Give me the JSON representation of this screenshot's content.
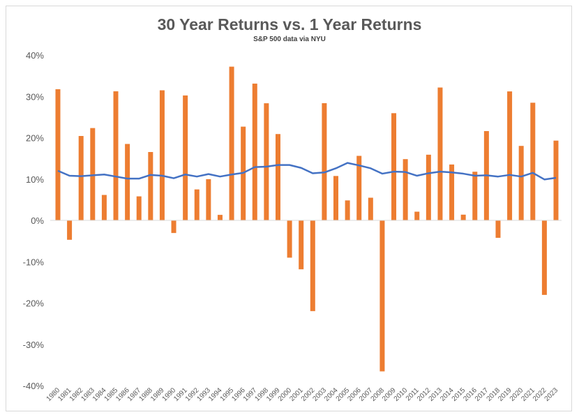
{
  "chart_data": {
    "type": "bar",
    "title": "30 Year Returns vs. 1 Year Returns",
    "subtitle": "S&P 500 data via NYU",
    "xlabel": "",
    "ylabel": "",
    "ylim": [
      -0.4,
      0.4
    ],
    "yticks": [
      -0.4,
      -0.3,
      -0.2,
      -0.1,
      0,
      0.1,
      0.2,
      0.3,
      0.4
    ],
    "ytick_labels": [
      "-40%",
      "-30%",
      "-20%",
      "-10%",
      "0%",
      "10%",
      "20%",
      "30%",
      "40%"
    ],
    "grid": false,
    "legend": "none",
    "categories": [
      "1980",
      "1981",
      "1982",
      "1983",
      "1984",
      "1985",
      "1986",
      "1987",
      "1988",
      "1989",
      "1990",
      "1991",
      "1992",
      "1993",
      "1994",
      "1995",
      "1996",
      "1997",
      "1998",
      "1999",
      "2000",
      "2001",
      "2002",
      "2003",
      "2004",
      "2005",
      "2006",
      "2007",
      "2008",
      "2009",
      "2010",
      "2011",
      "2012",
      "2013",
      "2014",
      "2015",
      "2016",
      "2017",
      "2018",
      "2019",
      "2020",
      "2021",
      "2022",
      "2023"
    ],
    "series": [
      {
        "type": "bar",
        "color": "#ed7d31",
        "values": [
          0.3174,
          -0.047,
          0.2042,
          0.2234,
          0.0615,
          0.3124,
          0.1849,
          0.0581,
          0.1654,
          0.3148,
          -0.0306,
          0.3023,
          0.0749,
          0.0997,
          0.0133,
          0.372,
          0.2268,
          0.331,
          0.2834,
          0.2089,
          -0.0903,
          -0.1185,
          -0.2197,
          0.2836,
          0.1074,
          0.0483,
          0.1561,
          0.0548,
          -0.3655,
          0.2594,
          0.1482,
          0.021,
          0.1589,
          0.3215,
          0.1352,
          0.0138,
          0.1177,
          0.2161,
          -0.0423,
          0.3121,
          0.1802,
          0.2847,
          -0.1804,
          0.193
        ]
      },
      {
        "type": "line",
        "color": "#4472c4",
        "values": [
          0.12,
          0.108,
          0.107,
          0.109,
          0.111,
          0.106,
          0.101,
          0.101,
          0.11,
          0.108,
          0.102,
          0.111,
          0.106,
          0.112,
          0.106,
          0.111,
          0.115,
          0.129,
          0.13,
          0.134,
          0.134,
          0.127,
          0.114,
          0.116,
          0.126,
          0.139,
          0.133,
          0.126,
          0.113,
          0.118,
          0.117,
          0.108,
          0.114,
          0.118,
          0.116,
          0.113,
          0.108,
          0.109,
          0.106,
          0.11,
          0.106,
          0.115,
          0.099,
          0.103
        ]
      }
    ]
  }
}
